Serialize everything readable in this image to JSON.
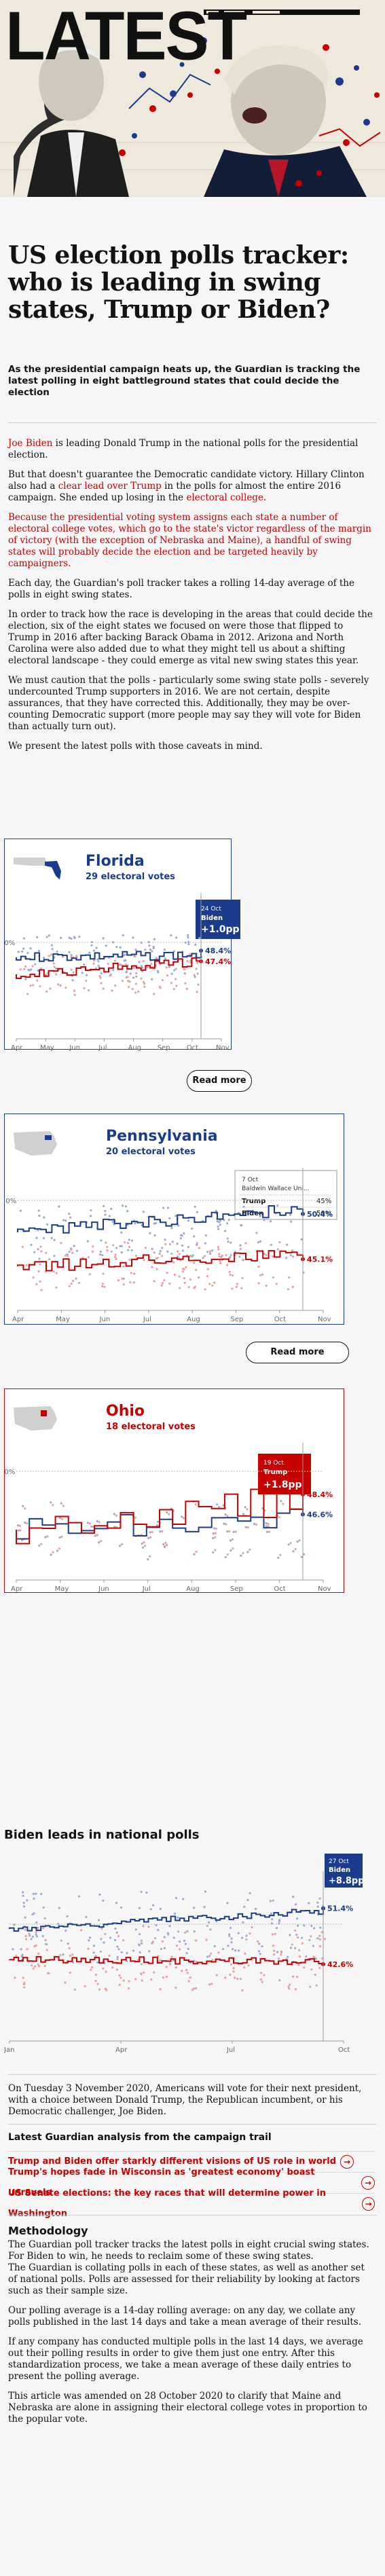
{
  "hero": {
    "word": "LATEST"
  },
  "headline": "US election polls tracker: who is leading in swing states, Trump or Biden?",
  "standfirst": "As the presidential campaign heats up, the Guardian is tracking the latest polling in eight battleground states that could decide the election",
  "intro": {
    "p1_link": "Joe Biden",
    "p1_rest": " is leading Donald Trump in the national polls for the presidential election.",
    "p2_a": "But that doesn't guarantee the Democratic candidate victory. Hillary Clinton also had a ",
    "p2_link": "clear lead over Trump",
    "p2_b": " in the polls for almost the entire 2016 campaign. She ended up losing in the ",
    "p2_link2": "electoral college",
    "p2_c": ".",
    "p3_link": "Because the presidential voting system assigns each state a number of electoral college votes",
    "p3_rest": ", which go to the state's victor regardless of the margin of victory (with the exception of Nebraska and Maine), a handful of swing states will probably decide the election and be targeted heavily by campaigners.",
    "p4": "Each day, the Guardian's poll tracker takes a rolling 14-day average of the polls in eight swing states.",
    "p5": "In order to track how the race is developing in the areas that could decide the election, six of the eight states we focused on were those that flipped to Trump in 2016 after backing Barack Obama in 2012. Arizona and North Carolina were also added due to what they might tell us about a shifting electoral landscape - they could emerge as vital new swing states this year.",
    "p6": "We must caution that the polls - particularly some swing state polls - severely undercounted Trump supporters in 2016. We are not certain, despite assurances, that they have corrected this. Additionally, they may be over-counting Democratic support (more people may say they will vote for Biden than actually turn out).",
    "p7": "We present the latest polls with those caveats in mind."
  },
  "colors": {
    "dem": "#1b3c8c",
    "rep": "#c70000",
    "red_text": "#c70000"
  },
  "charts": {
    "florida": {
      "state": "Florida",
      "ev": "29 electoral votes",
      "ylabel": "50%",
      "months": [
        "Apr",
        "May",
        "Jun",
        "Jul",
        "Aug",
        "Sep",
        "Oct",
        "Nov"
      ],
      "tip_date": "24 Oct",
      "tip_name": "Biden",
      "tip_value": "+1.0pp",
      "dem_label": "48.4%",
      "rep_label": "47.4%",
      "read_more": "Read more"
    },
    "pennsylvania": {
      "state": "Pennsylvania",
      "ev": "20 electoral votes",
      "ylabel": "50%",
      "months": [
        "Apr",
        "May",
        "Jun",
        "Jul",
        "Aug",
        "Sep",
        "Oct",
        "Nov"
      ],
      "tip_date": "7 Oct",
      "tip_pollster": "Baldwin Wallace Uni...",
      "tip_rows": [
        {
          "name": "Trump",
          "value": "45%"
        },
        {
          "name": "Biden",
          "value": "50%"
        }
      ],
      "dem_label": "50.4%",
      "rep_label": "45.1%",
      "read_more": "Read more"
    },
    "ohio": {
      "state": "Ohio",
      "ev": "18 electoral votes",
      "ylabel": "50%",
      "months": [
        "Apr",
        "May",
        "Jun",
        "Jul",
        "Aug",
        "Sep",
        "Oct",
        "Nov"
      ],
      "tip_date": "19 Oct",
      "tip_name": "Trump",
      "tip_value": "+1.8pp",
      "dem_label": "46.6%",
      "rep_label": "48.4%"
    },
    "national": {
      "title": "Biden leads in national polls",
      "months": [
        "Jan",
        "Apr",
        "Jul",
        "Oct"
      ],
      "tip_date": "27 Oct",
      "tip_name": "Biden",
      "tip_value": "+8.8pp",
      "dem_label": "51.4%",
      "rep_label": "42.6%"
    }
  },
  "closing": "On Tuesday 3 November 2020, Americans will vote for their next president, with a choice between Donald Trump, the Republican incumbent, or his Democratic challenger, Joe Biden.",
  "related": {
    "heading": "Latest Guardian analysis from the campaign trail",
    "items": [
      "Trump and Biden offer starkly different visions of US role in world",
      "Trump's hopes fade in Wisconsin as 'greatest economy' boast unravels",
      "US Senate elections: the key races that will determine power in Washington"
    ]
  },
  "methodology": {
    "title": "Methodology",
    "p1": "The Guardian poll tracker tracks the latest polls in eight crucial swing states. For Biden to win, he needs to reclaim some of these swing states.",
    "p2": "The Guardian is collating polls in each of these states, as well as another set of national polls. Polls are assessed for their reliability by looking at factors such as their sample size.",
    "p3": "Our polling average is a 14-day rolling average: on any day, we collate any polls published in the last 14 days and take a mean average of their results.",
    "p4": "If any company has conducted multiple polls in the last 14 days, we average out their polling results in order to give them just one entry. After this standardization process, we take a mean average of these daily entries to present the polling average.",
    "p5": "This article was amended on 28 October 2020 to clarify that Maine and Nebraska are alone in assigning their electoral college votes in proportion to the popular vote."
  }
}
